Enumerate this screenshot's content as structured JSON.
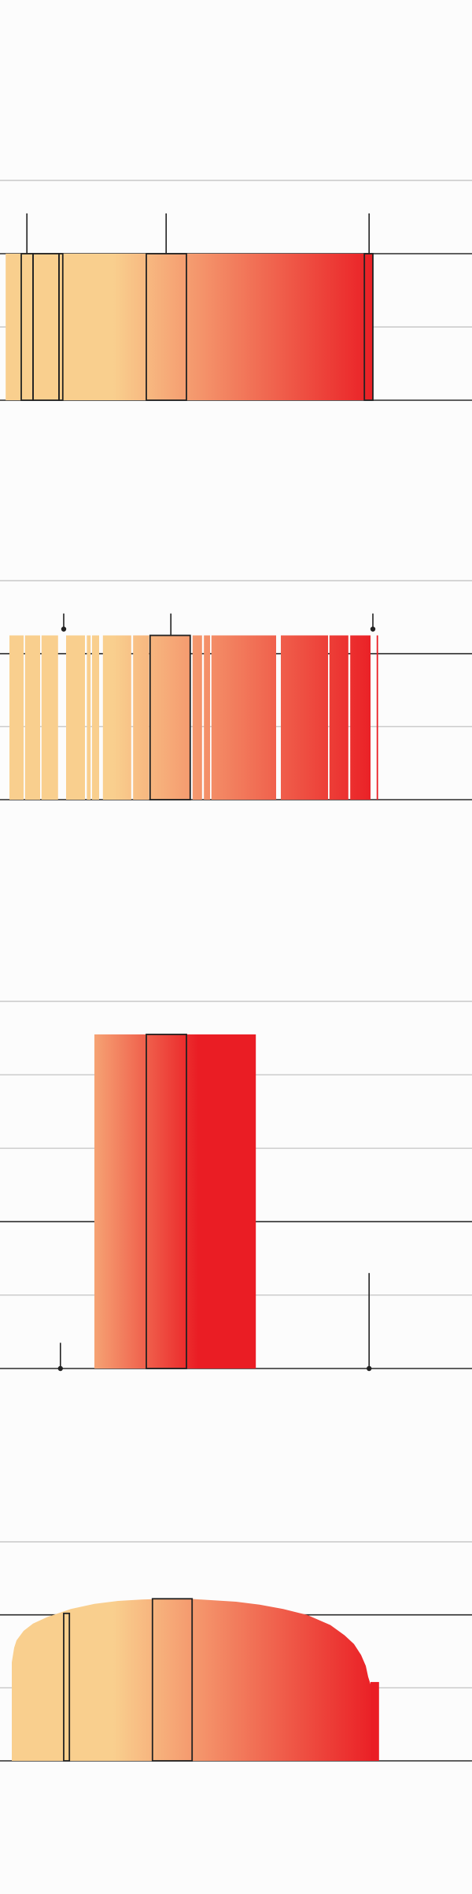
{
  "colors": {
    "background": "#fcfcfc",
    "gradient_start": "#f9cf8e",
    "gradient_end": "#ea1d24",
    "gridline_light": "#c8c8c8",
    "gridline_dark": "#2b2b2b",
    "outline": "#222222"
  },
  "chart_data": [
    {
      "type": "bar",
      "title": "",
      "xlabel": "",
      "ylabel": "",
      "grid": true,
      "ylim": [
        0,
        3
      ],
      "gridlines": [
        0,
        1,
        2,
        3
      ],
      "reference_line": 2,
      "bars": [
        {
          "x0": 0.012,
          "x1": 0.045,
          "value": 2
        },
        {
          "x0": 0.045,
          "x1": 0.07,
          "value": 2,
          "outlined": true
        },
        {
          "x0": 0.07,
          "x1": 0.125,
          "value": 2,
          "outlined": true
        },
        {
          "x0": 0.125,
          "x1": 0.133,
          "value": 2,
          "outlined": true
        },
        {
          "x0": 0.133,
          "x1": 0.31,
          "value": 2
        },
        {
          "x0": 0.31,
          "x1": 0.395,
          "value": 2,
          "outlined": true
        },
        {
          "x0": 0.395,
          "x1": 0.772,
          "value": 2
        },
        {
          "x0": 0.772,
          "x1": 0.79,
          "value": 2,
          "outlined": true
        }
      ],
      "markers": [
        {
          "x": 0.057,
          "value": 2.55,
          "dot": false
        },
        {
          "x": 0.352,
          "value": 2.55,
          "dot": false
        },
        {
          "x": 0.782,
          "value": 2.55,
          "dot": false
        }
      ]
    },
    {
      "type": "bar",
      "title": "",
      "xlabel": "",
      "ylabel": "",
      "grid": true,
      "ylim": [
        0,
        3
      ],
      "gridlines": [
        0,
        1,
        2,
        3
      ],
      "reference_line": 2,
      "bars": [
        {
          "x0": 0.02,
          "x1": 0.05,
          "value": 2.25
        },
        {
          "x0": 0.053,
          "x1": 0.085,
          "value": 2.25
        },
        {
          "x0": 0.088,
          "x1": 0.123,
          "value": 2.25
        },
        {
          "x0": 0.14,
          "x1": 0.18,
          "value": 2.25
        },
        {
          "x0": 0.184,
          "x1": 0.192,
          "value": 2.25
        },
        {
          "x0": 0.195,
          "x1": 0.21,
          "value": 2.25
        },
        {
          "x0": 0.218,
          "x1": 0.278,
          "value": 2.25
        },
        {
          "x0": 0.282,
          "x1": 0.316,
          "value": 2.25
        },
        {
          "x0": 0.318,
          "x1": 0.403,
          "value": 2.25,
          "outlined": true
        },
        {
          "x0": 0.408,
          "x1": 0.428,
          "value": 2.25
        },
        {
          "x0": 0.432,
          "x1": 0.445,
          "value": 2.25
        },
        {
          "x0": 0.448,
          "x1": 0.585,
          "value": 2.25
        },
        {
          "x0": 0.595,
          "x1": 0.695,
          "value": 2.25
        },
        {
          "x0": 0.698,
          "x1": 0.738,
          "value": 2.25
        },
        {
          "x0": 0.742,
          "x1": 0.785,
          "value": 2.25
        },
        {
          "x0": 0.798,
          "x1": 0.801,
          "value": 2.25
        }
      ],
      "markers": [
        {
          "x": 0.135,
          "value": 2.55,
          "dot": true
        },
        {
          "x": 0.362,
          "value": 2.55,
          "dot": false
        },
        {
          "x": 0.79,
          "value": 2.55,
          "dot": true
        }
      ]
    },
    {
      "type": "bar",
      "title": "",
      "xlabel": "",
      "ylabel": "",
      "grid": true,
      "ylim": [
        0,
        5
      ],
      "gridlines": [
        0,
        1,
        2,
        3,
        4,
        5
      ],
      "reference_line": 2,
      "gradient_fraction": 0.42,
      "bars": [
        {
          "x0": 0.2,
          "x1": 0.31,
          "value": 4.55
        },
        {
          "x0": 0.31,
          "x1": 0.395,
          "value": 4.55,
          "outlined": true
        },
        {
          "x0": 0.395,
          "x1": 0.542,
          "value": 4.55
        }
      ],
      "markers": [
        {
          "x": 0.128,
          "value": 0.35,
          "dot": true
        },
        {
          "x": 0.782,
          "value": 1.3,
          "dot": true
        }
      ]
    },
    {
      "type": "area",
      "title": "",
      "xlabel": "",
      "ylabel": "",
      "grid": true,
      "ylim": [
        0,
        3
      ],
      "gridlines": [
        0,
        1,
        2,
        3
      ],
      "reference_line": 2,
      "x_range": [
        0.025,
        0.785
      ],
      "points": [
        [
          0.025,
          1.35
        ],
        [
          0.03,
          1.55
        ],
        [
          0.035,
          1.65
        ],
        [
          0.05,
          1.78
        ],
        [
          0.07,
          1.88
        ],
        [
          0.1,
          1.97
        ],
        [
          0.15,
          2.08
        ],
        [
          0.2,
          2.15
        ],
        [
          0.25,
          2.19
        ],
        [
          0.3,
          2.21
        ],
        [
          0.35,
          2.22
        ],
        [
          0.4,
          2.22
        ],
        [
          0.45,
          2.2
        ],
        [
          0.5,
          2.18
        ],
        [
          0.55,
          2.14
        ],
        [
          0.6,
          2.08
        ],
        [
          0.65,
          2.0
        ],
        [
          0.7,
          1.86
        ],
        [
          0.73,
          1.72
        ],
        [
          0.75,
          1.6
        ],
        [
          0.765,
          1.45
        ],
        [
          0.775,
          1.3
        ],
        [
          0.78,
          1.15
        ],
        [
          0.785,
          1.05
        ]
      ],
      "outlined_bars": [
        {
          "x0": 0.135,
          "x1": 0.147,
          "value": 2.02
        },
        {
          "x0": 0.323,
          "x1": 0.407,
          "value": 2.22
        }
      ],
      "end_bar": {
        "x0": 0.785,
        "x1": 0.803,
        "value": 1.08
      }
    }
  ]
}
